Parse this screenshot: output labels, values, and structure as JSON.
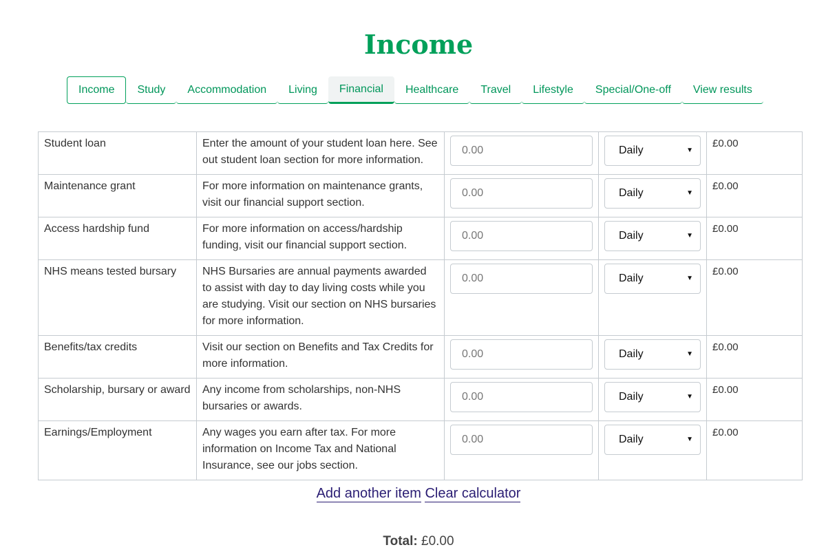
{
  "title": "Income",
  "tabs": [
    {
      "label": "Income"
    },
    {
      "label": "Study"
    },
    {
      "label": "Accommodation"
    },
    {
      "label": "Living"
    },
    {
      "label": "Financial"
    },
    {
      "label": "Healthcare"
    },
    {
      "label": "Travel"
    },
    {
      "label": "Lifestyle"
    },
    {
      "label": "Special/One-off"
    },
    {
      "label": "View results"
    }
  ],
  "rows": [
    {
      "name": "Student loan",
      "desc": "Enter the amount of your student loan here. See out student loan section for more information.",
      "placeholder": "0.00",
      "period": "Daily",
      "amount": "£0.00"
    },
    {
      "name": "Maintenance grant",
      "desc": "For more information on maintenance grants, visit our financial support section.",
      "placeholder": "0.00",
      "period": "Daily",
      "amount": "£0.00"
    },
    {
      "name": "Access hardship fund",
      "desc": "For more information on access/hardship funding, visit our financial support section.",
      "placeholder": "0.00",
      "period": "Daily",
      "amount": "£0.00"
    },
    {
      "name": "NHS means tested bursary",
      "desc": "NHS Bursaries are annual payments awarded to assist with day to day living costs while you are studying. Visit our section on NHS bursaries for more information.",
      "placeholder": "0.00",
      "period": "Daily",
      "amount": "£0.00"
    },
    {
      "name": "Benefits/tax credits",
      "desc": "Visit our section on Benefits and Tax Credits for more information.",
      "placeholder": "0.00",
      "period": "Daily",
      "amount": "£0.00"
    },
    {
      "name": "Scholarship, bursary or award",
      "desc": "Any income from scholarships, non-NHS bursaries or awards.",
      "placeholder": "0.00",
      "period": "Daily",
      "amount": "£0.00"
    },
    {
      "name": "Earnings/Employment",
      "desc": "Any wages you earn after tax. For more information on Income Tax and National Insurance, see our jobs section.",
      "placeholder": "0.00",
      "period": "Daily",
      "amount": "£0.00"
    }
  ],
  "actions": {
    "add": "Add another item",
    "clear": "Clear calculator"
  },
  "total": {
    "label": "Total:",
    "value": "£0.00"
  },
  "colors": {
    "brand": "#00a05a",
    "link": "#2a1d73"
  }
}
